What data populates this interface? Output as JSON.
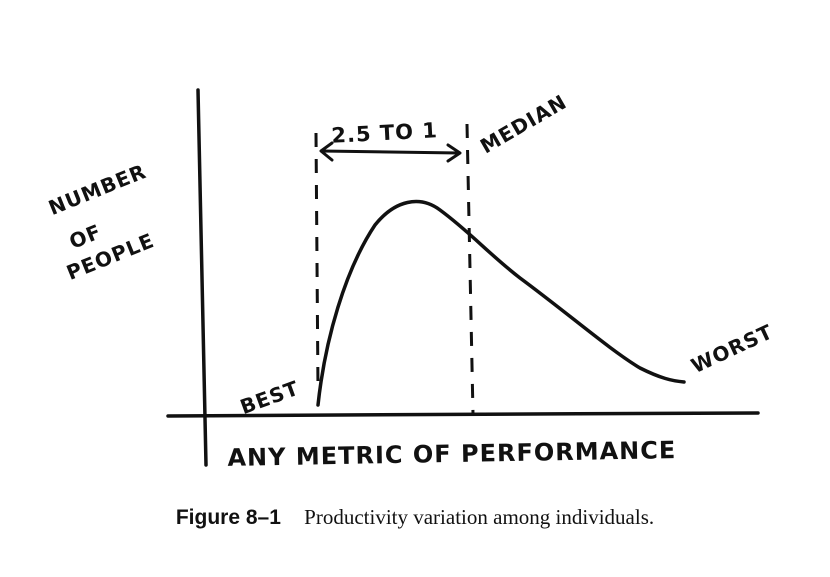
{
  "figure": {
    "y_axis_label_lines": [
      "NUMBER",
      "OF",
      "PEOPLE"
    ],
    "x_axis_label": "ANY METRIC OF PERFORMANCE",
    "range_annotation": "2.5 TO 1",
    "median_label": "MEDIAN",
    "best_label": "BEST",
    "worst_label": "WORST",
    "line_color": "#111111"
  },
  "caption": {
    "number": "Figure 8–1",
    "text": "Productivity variation among individuals."
  }
}
